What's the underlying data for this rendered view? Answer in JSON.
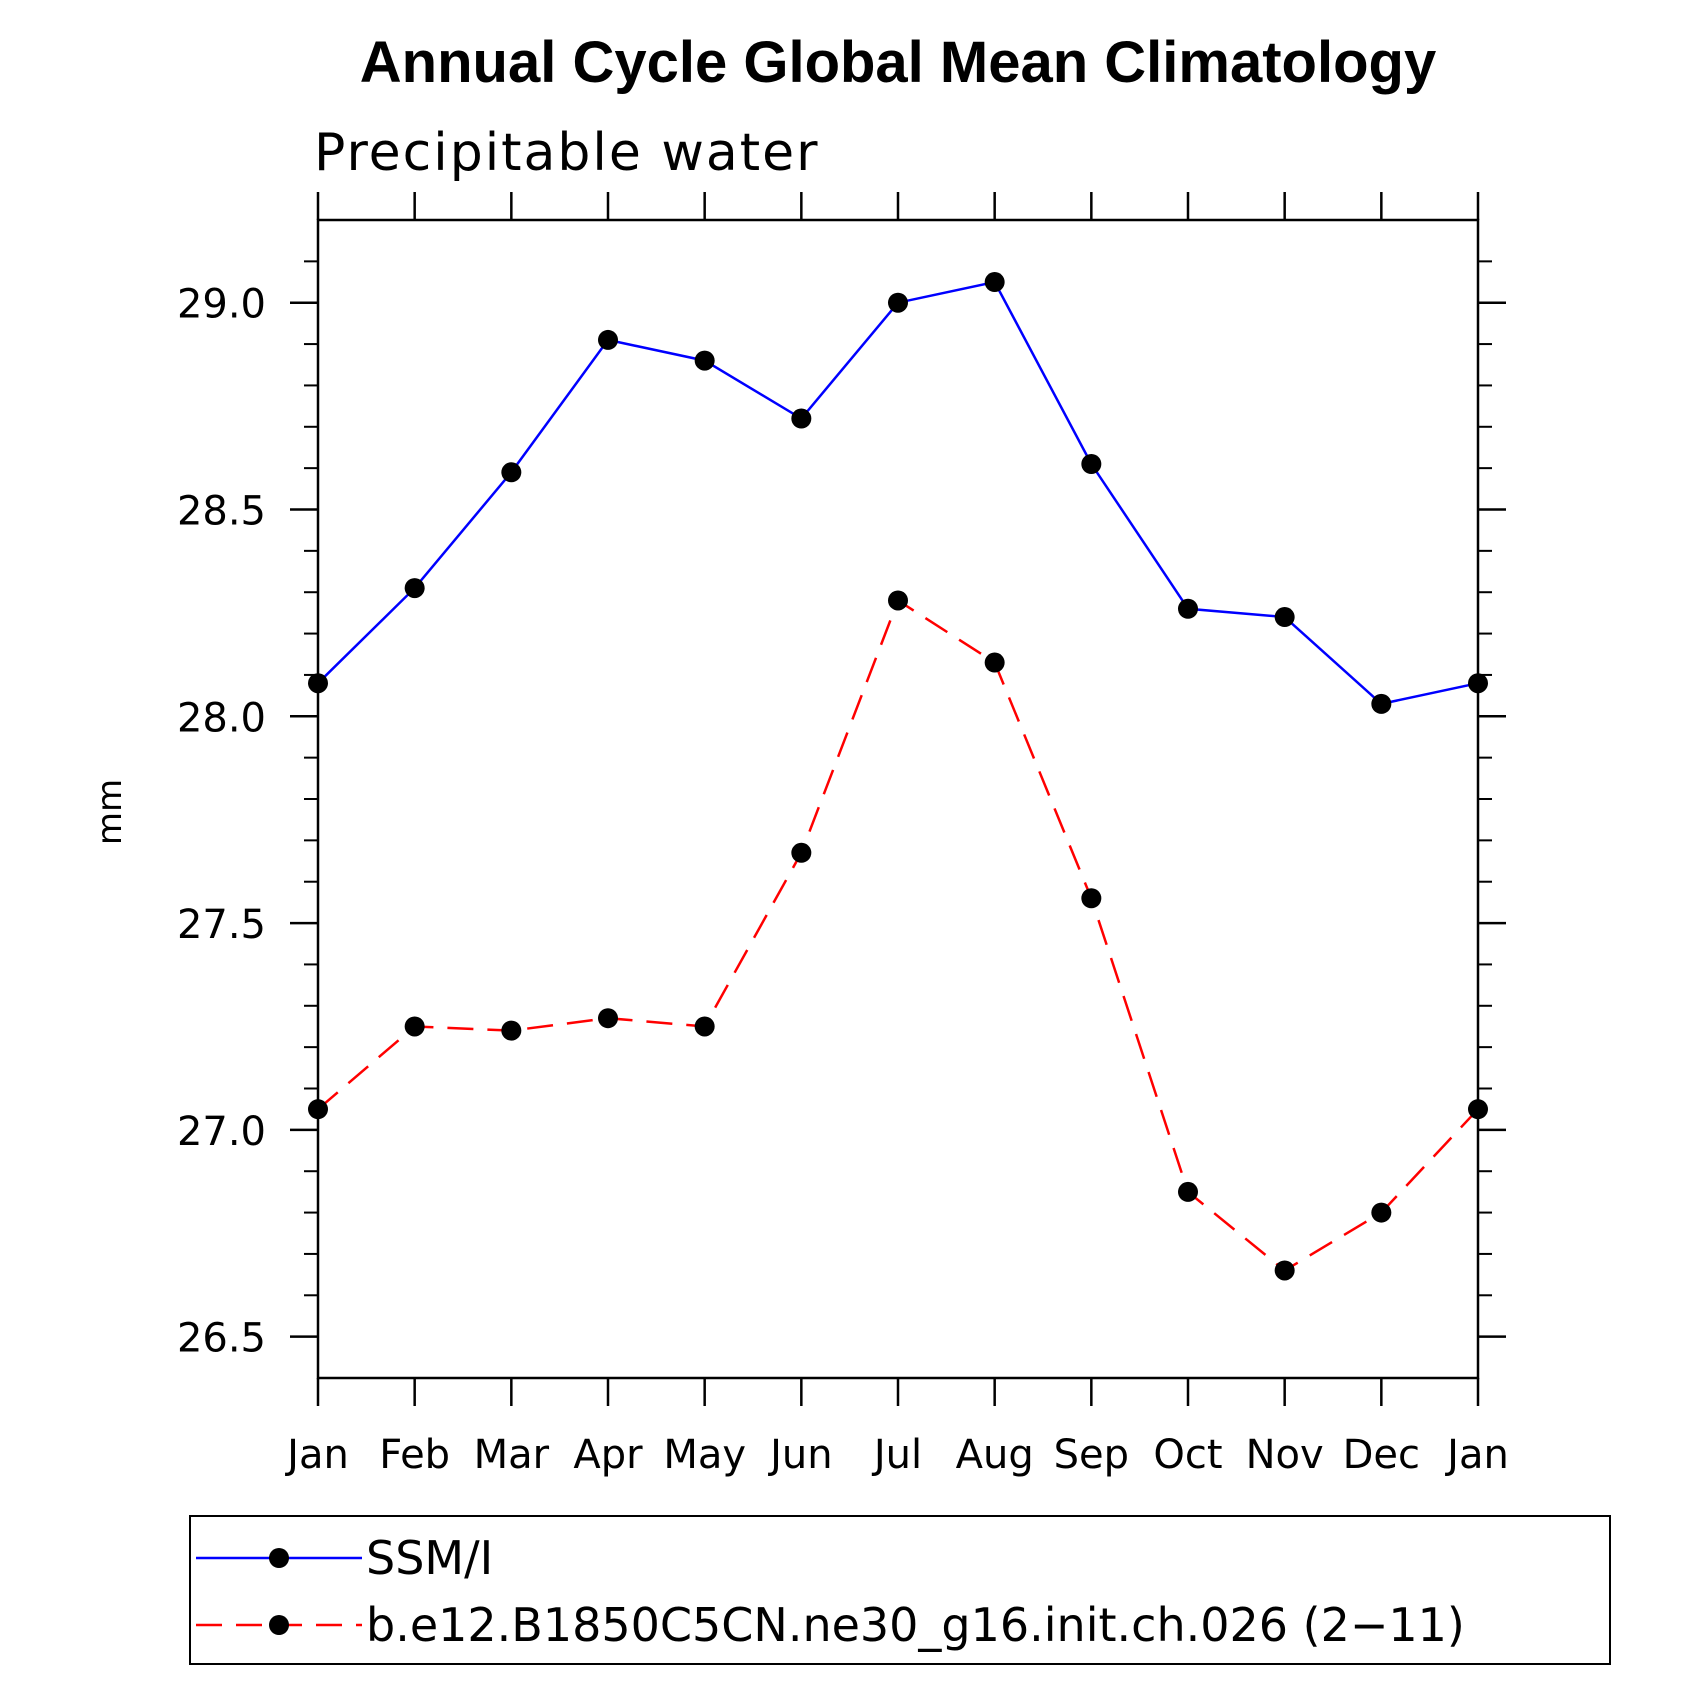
{
  "chart_data": {
    "type": "line",
    "title": "Annual Cycle Global Mean Climatology",
    "subtitle": "Precipitable water",
    "xlabel": "",
    "ylabel": "mm",
    "categories": [
      "Jan",
      "Feb",
      "Mar",
      "Apr",
      "May",
      "Jun",
      "Jul",
      "Aug",
      "Sep",
      "Oct",
      "Nov",
      "Dec",
      "Jan"
    ],
    "ylim": [
      26.4,
      29.2
    ],
    "yticks": [
      "26.5",
      "27.0",
      "27.5",
      "28.0",
      "28.5",
      "29.0"
    ],
    "ytick_values": [
      26.5,
      27.0,
      27.5,
      28.0,
      28.5,
      29.0
    ],
    "grid": false,
    "legend_position": "bottom",
    "series": [
      {
        "name": "SSM/I",
        "color": "#0000ff",
        "line_style": "solid",
        "marker": "filled-circle",
        "values": [
          28.08,
          28.31,
          28.59,
          28.91,
          28.86,
          28.72,
          29.0,
          29.05,
          28.61,
          28.26,
          28.24,
          28.03,
          28.08
        ]
      },
      {
        "name": "b.e12.B1850C5CN.ne30_g16.init.ch.026 (2−11)",
        "color": "#ff0000",
        "line_style": "dashed",
        "marker": "filled-circle",
        "values": [
          27.05,
          27.25,
          27.24,
          27.27,
          27.25,
          27.67,
          28.28,
          28.13,
          27.56,
          26.85,
          26.66,
          26.8,
          27.05
        ]
      }
    ]
  }
}
